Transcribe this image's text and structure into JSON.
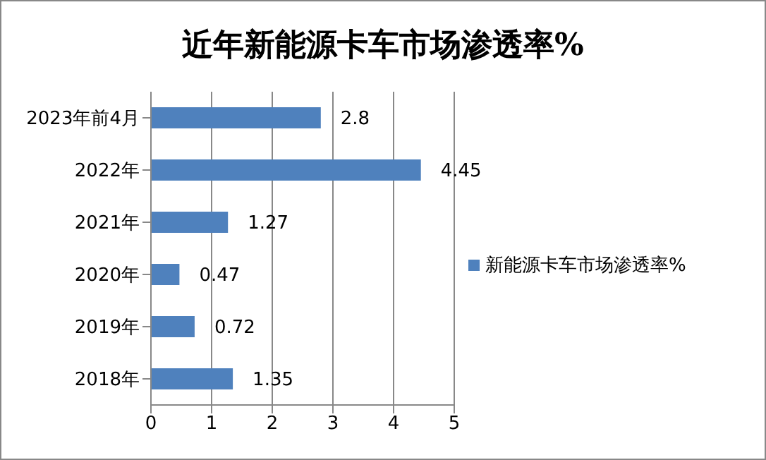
{
  "chart_data": {
    "type": "bar",
    "orientation": "horizontal",
    "title": "近年新能源卡车市场渗透率%",
    "categories": [
      "2023年前4月",
      "2022年",
      "2021年",
      "2020年",
      "2019年",
      "2018年"
    ],
    "series": [
      {
        "name": "新能源卡车市场渗透率%",
        "color": "#4f81bd",
        "values": [
          2.8,
          4.45,
          1.27,
          0.47,
          0.72,
          1.35
        ]
      }
    ],
    "xlim": [
      0,
      5
    ],
    "xticks": [
      0,
      1,
      2,
      3,
      4,
      5
    ],
    "grid": "x",
    "legend": "right",
    "data_labels": true
  }
}
